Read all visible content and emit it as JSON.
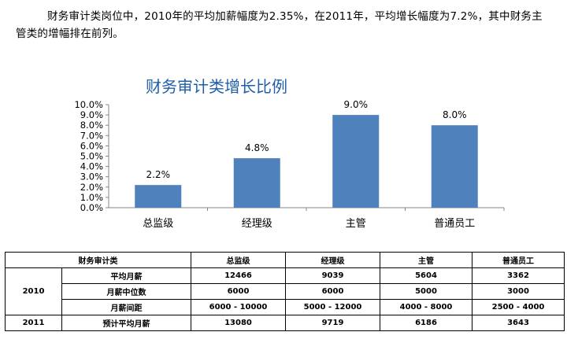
{
  "intro": {
    "text": "财务审计类岗位中，2010年的平均加薪幅度为2.35%，在2011年，平均增长幅度为7.2%，其中财务主管类的增幅排在前列。"
  },
  "chart_data": {
    "type": "bar",
    "title": "财务审计类增长比例",
    "categories": [
      "总监级",
      "经理级",
      "主管",
      "普通员工"
    ],
    "values": [
      2.2,
      4.8,
      9.0,
      8.0
    ],
    "value_labels": [
      "2.2%",
      "4.8%",
      "9.0%",
      "8.0%"
    ],
    "y_ticks": [
      "0.0%",
      "1.0%",
      "2.0%",
      "3.0%",
      "4.0%",
      "5.0%",
      "6.0%",
      "7.0%",
      "8.0%",
      "9.0%",
      "10.0%"
    ],
    "ylim": [
      0,
      10
    ],
    "xlabel": "",
    "ylabel": "",
    "grid": false,
    "bar_color": "#4f81bd",
    "title_color": "#1f5fa8"
  },
  "table": {
    "category_header": "财务审计类",
    "columns": [
      "总监级",
      "经理级",
      "主管",
      "普通员工"
    ],
    "groups": [
      {
        "year": "2010",
        "rows": [
          {
            "label": "平均月薪",
            "values": [
              "12466",
              "9039",
              "5604",
              "3362"
            ]
          },
          {
            "label": "月薪中位数",
            "values": [
              "6000",
              "6000",
              "5000",
              "3000"
            ]
          },
          {
            "label": "月薪间距",
            "values": [
              "6000 - 10000",
              "5000 - 12000",
              "4000 - 8000",
              "2500 - 4000"
            ]
          }
        ]
      },
      {
        "year": "2011",
        "rows": [
          {
            "label": "预计平均月薪",
            "values": [
              "13080",
              "9719",
              "6186",
              "3643"
            ]
          }
        ]
      }
    ]
  }
}
